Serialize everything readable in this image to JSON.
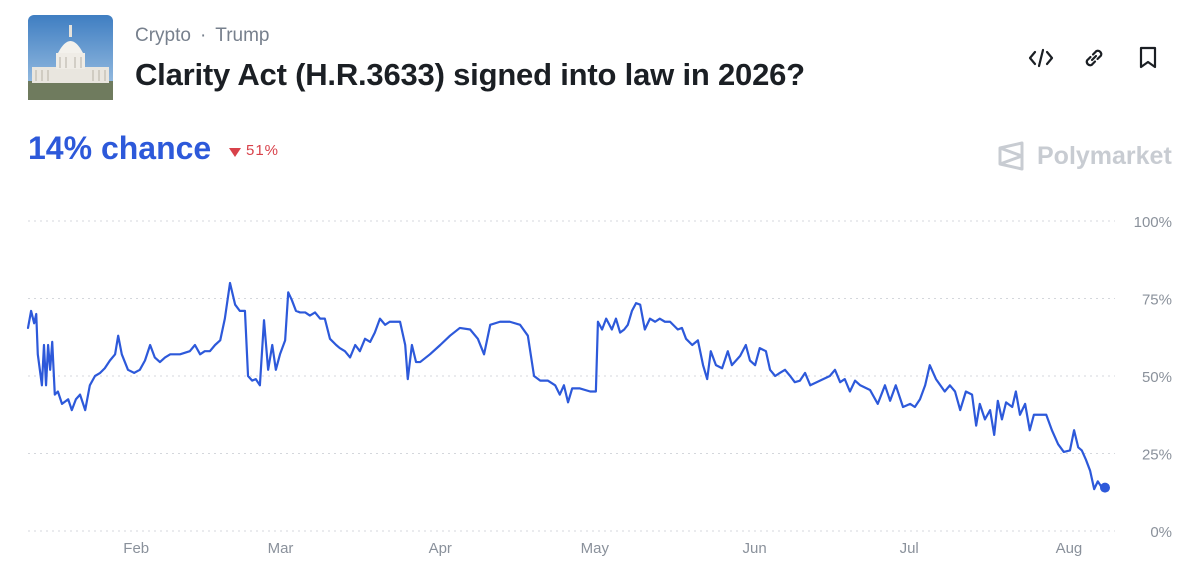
{
  "header": {
    "breadcrumbs": [
      "Crypto",
      "Trump"
    ],
    "chance": "14% chance",
    "change": "51%",
    "brand": "Polymarket"
  },
  "chart_data": {
    "type": "line",
    "title": "Clarity Act (H.R.3633) signed into law in 2026?",
    "color": "#2d59da",
    "grid": true,
    "xlim": [
      10,
      219
    ],
    "xticks": [
      {
        "value": 31,
        "label": "Feb"
      },
      {
        "value": 59,
        "label": "Mar"
      },
      {
        "value": 90,
        "label": "Apr"
      },
      {
        "value": 120,
        "label": "May"
      },
      {
        "value": 151,
        "label": "Jun"
      },
      {
        "value": 181,
        "label": "Jul"
      },
      {
        "value": 212,
        "label": "Aug"
      }
    ],
    "ylim": [
      0,
      100
    ],
    "yticks": [
      {
        "value": 0,
        "label": "0%"
      },
      {
        "value": 25,
        "label": "25%"
      },
      {
        "value": 50,
        "label": "50%"
      },
      {
        "value": 75,
        "label": "75%"
      },
      {
        "value": 100,
        "label": "100%"
      }
    ],
    "x": [
      10.0,
      10.6,
      11.2,
      11.6,
      11.9,
      12.7,
      13.1,
      13.5,
      13.9,
      14.3,
      14.7,
      15.2,
      15.8,
      16.6,
      17.8,
      18.5,
      19.3,
      20.1,
      21.1,
      22.0,
      23.0,
      24.0,
      24.9,
      25.9,
      26.9,
      27.5,
      28.2,
      29.4,
      30.6,
      31.7,
      32.7,
      33.7,
      34.6,
      35.6,
      36.6,
      37.6,
      39.5,
      41.4,
      42.4,
      43.4,
      44.3,
      45.3,
      46.3,
      47.3,
      48.2,
      49.2,
      50.2,
      51.1,
      52.1,
      52.7,
      53.5,
      54.2,
      55.0,
      55.8,
      56.6,
      57.4,
      58.1,
      58.9,
      59.9,
      60.5,
      61.2,
      62.0,
      62.8,
      63.8,
      64.7,
      65.7,
      66.7,
      67.6,
      68.6,
      69.8,
      70.5,
      71.5,
      72.5,
      73.5,
      74.4,
      75.4,
      76.4,
      77.3,
      78.3,
      79.3,
      80.2,
      82.2,
      83.2,
      83.7,
      84.5,
      85.3,
      86.1,
      88.0,
      90.0,
      91.9,
      93.8,
      95.8,
      97.3,
      98.5,
      99.7,
      101.6,
      103.5,
      105.5,
      107.0,
      108.2,
      109.4,
      110.9,
      112.3,
      113.2,
      114.0,
      114.8,
      115.6,
      117.1,
      119.1,
      120.2,
      120.6,
      121.4,
      122.2,
      123.3,
      124.1,
      124.9,
      125.7,
      126.4,
      127.2,
      128.0,
      128.8,
      129.7,
      130.7,
      131.7,
      132.6,
      133.6,
      134.6,
      136.1,
      136.9,
      137.7,
      138.9,
      140.0,
      141.0,
      141.8,
      142.5,
      143.5,
      144.7,
      145.8,
      146.6,
      148.2,
      149.3,
      150.1,
      151.1,
      152.0,
      153.2,
      154.0,
      155.0,
      155.9,
      156.9,
      157.9,
      158.8,
      159.8,
      160.8,
      161.8,
      163.7,
      165.6,
      166.6,
      167.6,
      168.5,
      169.5,
      170.5,
      171.5,
      173.4,
      174.9,
      176.3,
      177.3,
      178.4,
      179.8,
      181.2,
      182.1,
      183.1,
      184.1,
      185.0,
      186.2,
      187.9,
      188.9,
      189.9,
      190.9,
      192.0,
      193.2,
      194.0,
      194.7,
      195.7,
      196.7,
      197.5,
      198.2,
      199.0,
      199.8,
      201.0,
      201.7,
      202.5,
      203.5,
      204.4,
      205.2,
      206.4,
      207.6,
      208.7,
      209.9,
      211.0,
      212.2,
      213.0,
      213.8,
      214.5,
      215.3,
      216.1,
      216.9,
      217.6,
      218.4,
      219.0
    ],
    "values": [
      65.5,
      71,
      67,
      70,
      57,
      47,
      60,
      47,
      60,
      52,
      61,
      44,
      45,
      41,
      42.5,
      39,
      42.5,
      44,
      39,
      47,
      50,
      51,
      52.5,
      55,
      57,
      63,
      57,
      52,
      51,
      52,
      55,
      60,
      56,
      54.5,
      56,
      57,
      57,
      58,
      60,
      57,
      58,
      58,
      60,
      61.5,
      68.5,
      80,
      73,
      71,
      71,
      50,
      48.5,
      49,
      47,
      68,
      52,
      60,
      52,
      57,
      61.5,
      77,
      74.5,
      71,
      70.5,
      70.5,
      69.5,
      70.5,
      68.5,
      68.5,
      62,
      60,
      59,
      58,
      56,
      60,
      58,
      62,
      61,
      64,
      68.5,
      66.5,
      67.5,
      67.5,
      60,
      49,
      60,
      54.5,
      54.5,
      57,
      60,
      63,
      65.5,
      65,
      62,
      57,
      66.5,
      67.5,
      67.5,
      66.5,
      63,
      50,
      48.5,
      48.5,
      47,
      44,
      47,
      41.5,
      46,
      46,
      45,
      45,
      67.5,
      65,
      68.5,
      65,
      68.5,
      64,
      65,
      66.5,
      71,
      73.5,
      73,
      65,
      68.5,
      67.5,
      68.5,
      67.5,
      67.5,
      65,
      65.5,
      62,
      60,
      61.5,
      53.5,
      49,
      58,
      53.5,
      52.5,
      58,
      53.5,
      56.5,
      60,
      55,
      53.5,
      59,
      58,
      52,
      50,
      51,
      52,
      50,
      48,
      48.5,
      51,
      47,
      48.5,
      50,
      52,
      48,
      49,
      45,
      48.5,
      47,
      45.5,
      41,
      47,
      42,
      47,
      40,
      41,
      40,
      42.5,
      47,
      53.5,
      49,
      45,
      47,
      45,
      39,
      45,
      44,
      34,
      41,
      36,
      39,
      31,
      42,
      36,
      41.5,
      40,
      45,
      37.5,
      41,
      32.5,
      37.5,
      37.5,
      37.5,
      32.5,
      28,
      25.5,
      26,
      32.5,
      27,
      26,
      23,
      19.5,
      13.5,
      16,
      14,
      14
    ]
  }
}
